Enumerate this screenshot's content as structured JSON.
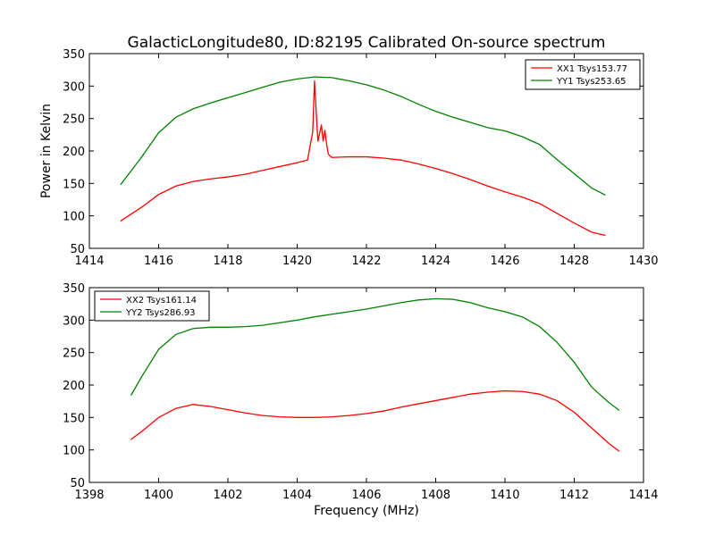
{
  "chart_data": {
    "title": "GalacticLongitude80, ID:82195 Calibrated On-source spectrum",
    "xlabel_shared": "Frequency (MHz)",
    "colors": {
      "xx": "#ff0000",
      "yy": "#008000"
    },
    "charts": [
      {
        "type": "line",
        "xlabel": "",
        "ylabel": "Power in Kelvin",
        "xlim": [
          1414,
          1430
        ],
        "ylim": [
          50,
          350
        ],
        "xticks": [
          "1414",
          "1416",
          "1418",
          "1420",
          "1422",
          "1424",
          "1426",
          "1428",
          "1430"
        ],
        "yticks": [
          "50",
          "100",
          "150",
          "200",
          "250",
          "300",
          "350"
        ],
        "legend_position": "top-right",
        "series": [
          {
            "name": "XX1 Tsys153.77",
            "color": "#ff0000",
            "x": [
              1414.9,
              1415.5,
              1416.0,
              1416.5,
              1417.0,
              1417.5,
              1418.0,
              1418.5,
              1419.0,
              1419.5,
              1420.0,
              1420.3,
              1420.45,
              1420.5,
              1420.55,
              1420.6,
              1420.7,
              1420.75,
              1420.8,
              1420.85,
              1420.9,
              1421.0,
              1421.5,
              1422.0,
              1422.5,
              1423.0,
              1423.5,
              1424.0,
              1424.5,
              1425.0,
              1425.5,
              1426.0,
              1426.5,
              1427.0,
              1427.5,
              1428.0,
              1428.5,
              1428.9
            ],
            "y": [
              92,
              113,
              133,
              146,
              153,
              157,
              160,
              164,
              170,
              176,
              182,
              186,
              230,
              308,
              260,
              215,
              240,
              215,
              232,
              210,
              195,
              190,
              191,
              191,
              189,
              186,
              180,
              173,
              165,
              156,
              146,
              137,
              129,
              119,
              104,
              89,
              75,
              70
            ]
          },
          {
            "name": "YY1 Tsys253.65",
            "color": "#008000",
            "x": [
              1414.9,
              1415.5,
              1416.0,
              1416.5,
              1417.0,
              1417.5,
              1418.0,
              1418.5,
              1419.0,
              1419.5,
              1420.0,
              1420.5,
              1421.0,
              1421.5,
              1422.0,
              1422.5,
              1423.0,
              1423.5,
              1424.0,
              1424.5,
              1425.0,
              1425.5,
              1426.0,
              1426.5,
              1427.0,
              1427.5,
              1428.0,
              1428.5,
              1428.9
            ],
            "y": [
              148,
              190,
              228,
              252,
              265,
              274,
              282,
              290,
              298,
              306,
              311,
              314,
              313,
              308,
              302,
              294,
              284,
              272,
              261,
              252,
              244,
              236,
              231,
              222,
              210,
              187,
              165,
              143,
              132
            ]
          }
        ]
      },
      {
        "type": "line",
        "xlabel": "Frequency (MHz)",
        "ylabel": "",
        "xlim": [
          1398,
          1414
        ],
        "ylim": [
          50,
          350
        ],
        "xticks": [
          "1398",
          "1400",
          "1402",
          "1404",
          "1406",
          "1408",
          "1410",
          "1412",
          "1414"
        ],
        "yticks": [
          "50",
          "100",
          "150",
          "200",
          "250",
          "300",
          "350"
        ],
        "legend_position": "top-left",
        "series": [
          {
            "name": "XX2 Tsys161.14",
            "color": "#ff0000",
            "x": [
              1399.2,
              1399.5,
              1400.0,
              1400.5,
              1401.0,
              1401.5,
              1402.0,
              1402.5,
              1403.0,
              1403.5,
              1404.0,
              1404.5,
              1405.0,
              1405.5,
              1406.0,
              1406.5,
              1407.0,
              1407.5,
              1408.0,
              1408.5,
              1409.0,
              1409.5,
              1410.0,
              1410.5,
              1411.0,
              1411.5,
              1412.0,
              1412.5,
              1413.0,
              1413.3
            ],
            "y": [
              116,
              128,
              150,
              164,
              170,
              167,
              162,
              157,
              153,
              151,
              150,
              150,
              151,
              153,
              156,
              160,
              166,
              171,
              176,
              181,
              186,
              189,
              191,
              190,
              186,
              176,
              158,
              134,
              110,
              98
            ]
          },
          {
            "name": "YY2 Tsys286.93",
            "color": "#008000",
            "x": [
              1399.2,
              1399.5,
              1400.0,
              1400.5,
              1401.0,
              1401.5,
              1402.0,
              1402.5,
              1403.0,
              1403.5,
              1404.0,
              1404.5,
              1405.0,
              1405.5,
              1406.0,
              1406.5,
              1407.0,
              1407.5,
              1408.0,
              1408.5,
              1409.0,
              1409.5,
              1410.0,
              1410.5,
              1411.0,
              1411.5,
              1412.0,
              1412.5,
              1413.0,
              1413.3
            ],
            "y": [
              184,
              212,
              255,
              278,
              287,
              289,
              289,
              290,
              292,
              296,
              300,
              305,
              309,
              313,
              317,
              322,
              327,
              331,
              333,
              332,
              327,
              319,
              313,
              305,
              290,
              266,
              235,
              197,
              173,
              161
            ]
          }
        ]
      }
    ]
  }
}
